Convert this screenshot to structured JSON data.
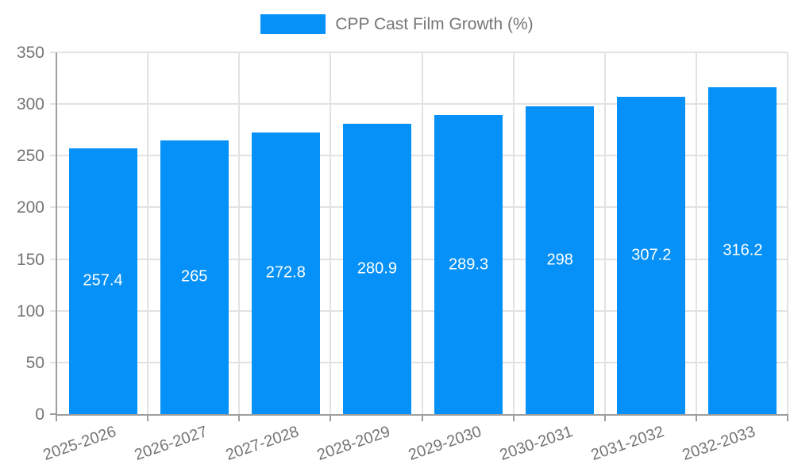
{
  "legend": {
    "label": "CPP Cast Film Growth (%)"
  },
  "colors": {
    "bar": "#0591f7",
    "grid": "#e2e2e2",
    "axis": "#9e9e9e",
    "tick_text": "#757575",
    "value_label_text": "#ffffff",
    "background": "#ffffff"
  },
  "chart_data": {
    "type": "bar",
    "title": "",
    "series_name": "CPP Cast Film Growth (%)",
    "categories": [
      "2025-2026",
      "2026-2027",
      "2027-2028",
      "2028-2029",
      "2029-2030",
      "2030-2031",
      "2031-2032",
      "2032-2033"
    ],
    "values": [
      257.4,
      265,
      272.8,
      280.9,
      289.3,
      298,
      307.2,
      316.2
    ],
    "value_labels_shown": [
      "257.4",
      "265",
      "272.8",
      "280.9",
      "289.3",
      "298",
      "307.2",
      "316.2"
    ],
    "xlabel": "",
    "ylabel": "",
    "ylim": [
      0,
      350
    ],
    "y_ticks": [
      0,
      50,
      100,
      150,
      200,
      250,
      300,
      350
    ],
    "grid": true,
    "legend_position": "top-center",
    "value_label_position": "inside-center",
    "x_tick_rotation_deg": -19
  }
}
